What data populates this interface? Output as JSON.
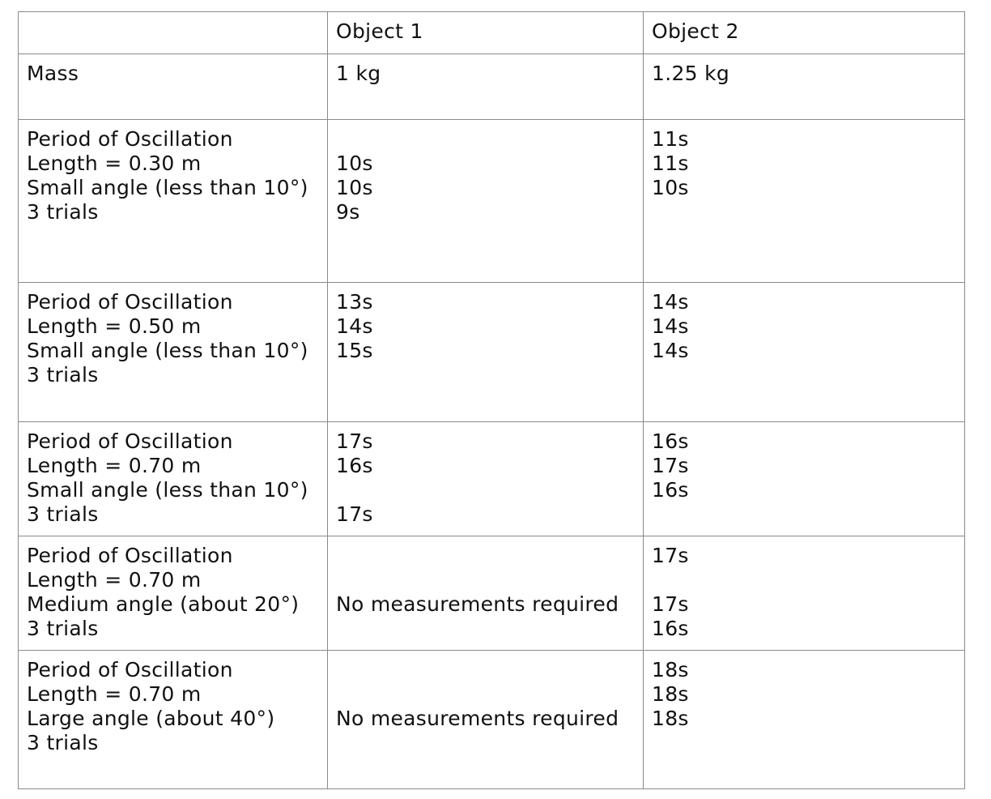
{
  "header": {
    "col0": "",
    "col1": "Object 1",
    "col2": "Object 2"
  },
  "mass_row": {
    "label": "Mass",
    "object1": "1 kg",
    "object2": "1.25 kg"
  },
  "rows": [
    {
      "label_lines": [
        "Period of Oscillation",
        "Length = 0.30 m",
        "Small angle (less than 10°)",
        "3 trials"
      ],
      "object1_lines": [
        "",
        "10s",
        "10s",
        "9s"
      ],
      "object2_lines": [
        "11s",
        "11s",
        "10s"
      ]
    },
    {
      "label_lines": [
        "Period of Oscillation",
        "Length = 0.50 m",
        "Small angle (less than 10°)",
        "3 trials"
      ],
      "object1_lines": [
        "13s",
        "14s",
        "15s"
      ],
      "object2_lines": [
        "14s",
        "14s",
        "14s"
      ]
    },
    {
      "label_lines": [
        "Period of Oscillation",
        "Length = 0.70 m",
        "Small angle (less than 10°)",
        "3 trials"
      ],
      "object1_lines": [
        "17s",
        "16s",
        "",
        "17s"
      ],
      "object2_lines": [
        "16s",
        "17s",
        "16s"
      ]
    },
    {
      "label_lines": [
        "Period of Oscillation",
        "Length = 0.70 m",
        "Medium angle (about 20°)",
        "3 trials"
      ],
      "object1_lines": [
        "",
        "",
        "No measurements required"
      ],
      "object2_lines": [
        "17s",
        "",
        "17s",
        "16s"
      ]
    },
    {
      "label_lines": [
        "Period of Oscillation",
        "Length = 0.70 m",
        "Large angle (about 40°)",
        "3 trials"
      ],
      "object1_lines": [
        "",
        "",
        "No measurements required"
      ],
      "object2_lines": [
        "18s",
        "18s",
        "18s"
      ]
    }
  ]
}
